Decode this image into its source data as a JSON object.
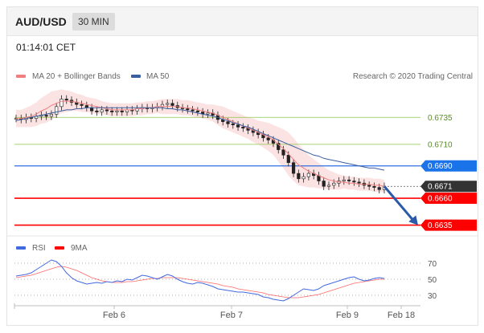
{
  "header": {
    "symbol": "AUD/USD",
    "timeframe": "30 MIN"
  },
  "time": "01:14:01 CET",
  "legend": {
    "ma20": "MA 20 + Bollinger Bands",
    "ma50": "MA 50",
    "credit": "Research © 2020 Trading Central",
    "rsi": "RSI",
    "ma9": "9MA"
  },
  "colors": {
    "ma20": "#f08080",
    "ma50": "#3a5f9e",
    "support": "#ff0000",
    "pivot_blue": "#2f6fe0",
    "resistance_green": "#8bc34a",
    "rsi": "#4169e1",
    "arrow": "#2a5aa8"
  },
  "chart_data": [
    {
      "type": "line",
      "subtype": "candlestick",
      "title": "AUD/USD",
      "x_ticks": [
        "Feb 6",
        "Feb 7",
        "Feb 9",
        "Feb 18"
      ],
      "ylim": [
        0.6628,
        0.6762
      ],
      "levels": [
        {
          "value": 0.6735,
          "label": "0.6735",
          "style": "green-thin"
        },
        {
          "value": 0.671,
          "label": "0.6710",
          "style": "green-thin"
        },
        {
          "value": 0.669,
          "label": "0.6690",
          "style": "blue"
        },
        {
          "value": 0.6671,
          "label": "0.6671",
          "style": "last-price"
        },
        {
          "value": 0.666,
          "label": "0.6660",
          "style": "red"
        },
        {
          "value": 0.6635,
          "label": "0.6635",
          "style": "red"
        }
      ],
      "close_series": [
        0.6734,
        0.6733,
        0.6735,
        0.6734,
        0.6736,
        0.6737,
        0.6736,
        0.6738,
        0.6745,
        0.6752,
        0.6751,
        0.6749,
        0.6747,
        0.6746,
        0.6744,
        0.6741,
        0.674,
        0.6742,
        0.6741,
        0.674,
        0.6741,
        0.674,
        0.6742,
        0.6741,
        0.6743,
        0.6744,
        0.6743,
        0.6744,
        0.6745,
        0.6747,
        0.6748,
        0.6746,
        0.6744,
        0.6743,
        0.6742,
        0.6741,
        0.674,
        0.6738,
        0.6739,
        0.6737,
        0.6733,
        0.6731,
        0.6729,
        0.6728,
        0.6726,
        0.6725,
        0.6723,
        0.6721,
        0.6719,
        0.6716,
        0.6714,
        0.6711,
        0.6705,
        0.67,
        0.6693,
        0.6683,
        0.6678,
        0.668,
        0.6683,
        0.6681,
        0.6676,
        0.6671,
        0.6672,
        0.6674,
        0.6676,
        0.6677,
        0.6676,
        0.6675,
        0.6674,
        0.6672,
        0.6671,
        0.667,
        0.6668,
        0.6671
      ],
      "ma20": [
        0.6734,
        0.6734,
        0.6735,
        0.6736,
        0.6738,
        0.6741,
        0.6743,
        0.6746,
        0.6748,
        0.675,
        0.675,
        0.675,
        0.6749,
        0.6748,
        0.6747,
        0.6746,
        0.6745,
        0.6744,
        0.6743,
        0.6742,
        0.6742,
        0.6742,
        0.6742,
        0.6742,
        0.6743,
        0.6743,
        0.6744,
        0.6744,
        0.6745,
        0.6745,
        0.6745,
        0.6745,
        0.6745,
        0.6744,
        0.6744,
        0.6743,
        0.6742,
        0.6741,
        0.674,
        0.6739,
        0.6737,
        0.6735,
        0.6733,
        0.6731,
        0.6729,
        0.6727,
        0.6725,
        0.6723,
        0.6721,
        0.6719,
        0.6717,
        0.6714,
        0.671,
        0.6706,
        0.6701,
        0.6696,
        0.6691,
        0.6688,
        0.6685,
        0.6683,
        0.6681,
        0.6679,
        0.6677,
        0.6676,
        0.6675,
        0.6675,
        0.6674,
        0.6674,
        0.6673,
        0.6673,
        0.6673,
        0.6672,
        0.6672,
        0.6671
      ],
      "band_width": [
        0.0008,
        0.0008,
        0.0009,
        0.001,
        0.0011,
        0.0012,
        0.0013,
        0.0013,
        0.0012,
        0.0011,
        0.001,
        0.0009,
        0.0008,
        0.0008,
        0.0007,
        0.0007,
        0.0007,
        0.0006,
        0.0006,
        0.0006,
        0.0006,
        0.0006,
        0.0006,
        0.0006,
        0.0006,
        0.0006,
        0.0006,
        0.0006,
        0.0006,
        0.0007,
        0.0007,
        0.0007,
        0.0007,
        0.0007,
        0.0007,
        0.0007,
        0.0007,
        0.0007,
        0.0007,
        0.0008,
        0.0009,
        0.001,
        0.001,
        0.001,
        0.001,
        0.001,
        0.001,
        0.0011,
        0.0011,
        0.0012,
        0.0013,
        0.0014,
        0.0016,
        0.0018,
        0.002,
        0.002,
        0.0019,
        0.0017,
        0.0015,
        0.0013,
        0.0012,
        0.001,
        0.0009,
        0.0008,
        0.0007,
        0.0006,
        0.0006,
        0.0006,
        0.0006,
        0.0006,
        0.0006,
        0.0006,
        0.0006,
        0.0006
      ],
      "ma50": [
        0.6732,
        0.6733,
        0.6734,
        0.6735,
        0.6736,
        0.6737,
        0.6738,
        0.6739,
        0.674,
        0.6741,
        0.6742,
        0.6742,
        0.6743,
        0.6743,
        0.6744,
        0.6744,
        0.6744,
        0.6744,
        0.6744,
        0.6744,
        0.6744,
        0.6744,
        0.6744,
        0.6744,
        0.6744,
        0.6744,
        0.6744,
        0.6744,
        0.6744,
        0.6744,
        0.6743,
        0.6743,
        0.6742,
        0.6742,
        0.6741,
        0.674,
        0.6739,
        0.6738,
        0.6737,
        0.6736,
        0.6735,
        0.6733,
        0.6732,
        0.673,
        0.6729,
        0.6727,
        0.6726,
        0.6724,
        0.6722,
        0.672,
        0.6718,
        0.6716,
        0.6714,
        0.6712,
        0.671,
        0.6708,
        0.6706,
        0.6704,
        0.6702,
        0.67,
        0.6699,
        0.6697,
        0.6696,
        0.6695,
        0.6694,
        0.6693,
        0.6692,
        0.6691,
        0.669,
        0.6689,
        0.6688,
        0.6688,
        0.6687,
        0.6686
      ],
      "projection": {
        "from": 0.6671,
        "to": 0.6635
      }
    },
    {
      "type": "line",
      "title": "RSI",
      "ylim": [
        20,
        80
      ],
      "y_ticks": [
        30,
        50,
        70
      ],
      "rsi": [
        54,
        55,
        56,
        58,
        62,
        66,
        70,
        74,
        72,
        66,
        58,
        52,
        48,
        46,
        44,
        45,
        46,
        45,
        47,
        46,
        48,
        47,
        50,
        49,
        52,
        55,
        54,
        52,
        50,
        53,
        56,
        54,
        50,
        47,
        45,
        44,
        46,
        45,
        43,
        41,
        38,
        37,
        36,
        35,
        34,
        34,
        33,
        32,
        31,
        28,
        27,
        25,
        24,
        23,
        26,
        30,
        34,
        38,
        37,
        36,
        38,
        42,
        44,
        46,
        48,
        50,
        52,
        53,
        50,
        48,
        49,
        51,
        52,
        51
      ],
      "ma9": [
        52,
        53,
        54,
        55,
        57,
        59,
        61,
        63,
        65,
        66,
        65,
        63,
        61,
        58,
        55,
        52,
        50,
        48,
        47,
        46,
        46,
        46,
        47,
        47,
        48,
        49,
        50,
        51,
        51,
        52,
        52,
        52,
        52,
        51,
        50,
        49,
        48,
        47,
        46,
        45,
        44,
        42,
        41,
        40,
        38,
        37,
        36,
        35,
        34,
        33,
        31,
        30,
        29,
        28,
        27,
        27,
        27,
        28,
        29,
        30,
        31,
        33,
        35,
        37,
        39,
        41,
        43,
        45,
        46,
        47,
        48,
        49,
        50,
        50
      ]
    }
  ]
}
